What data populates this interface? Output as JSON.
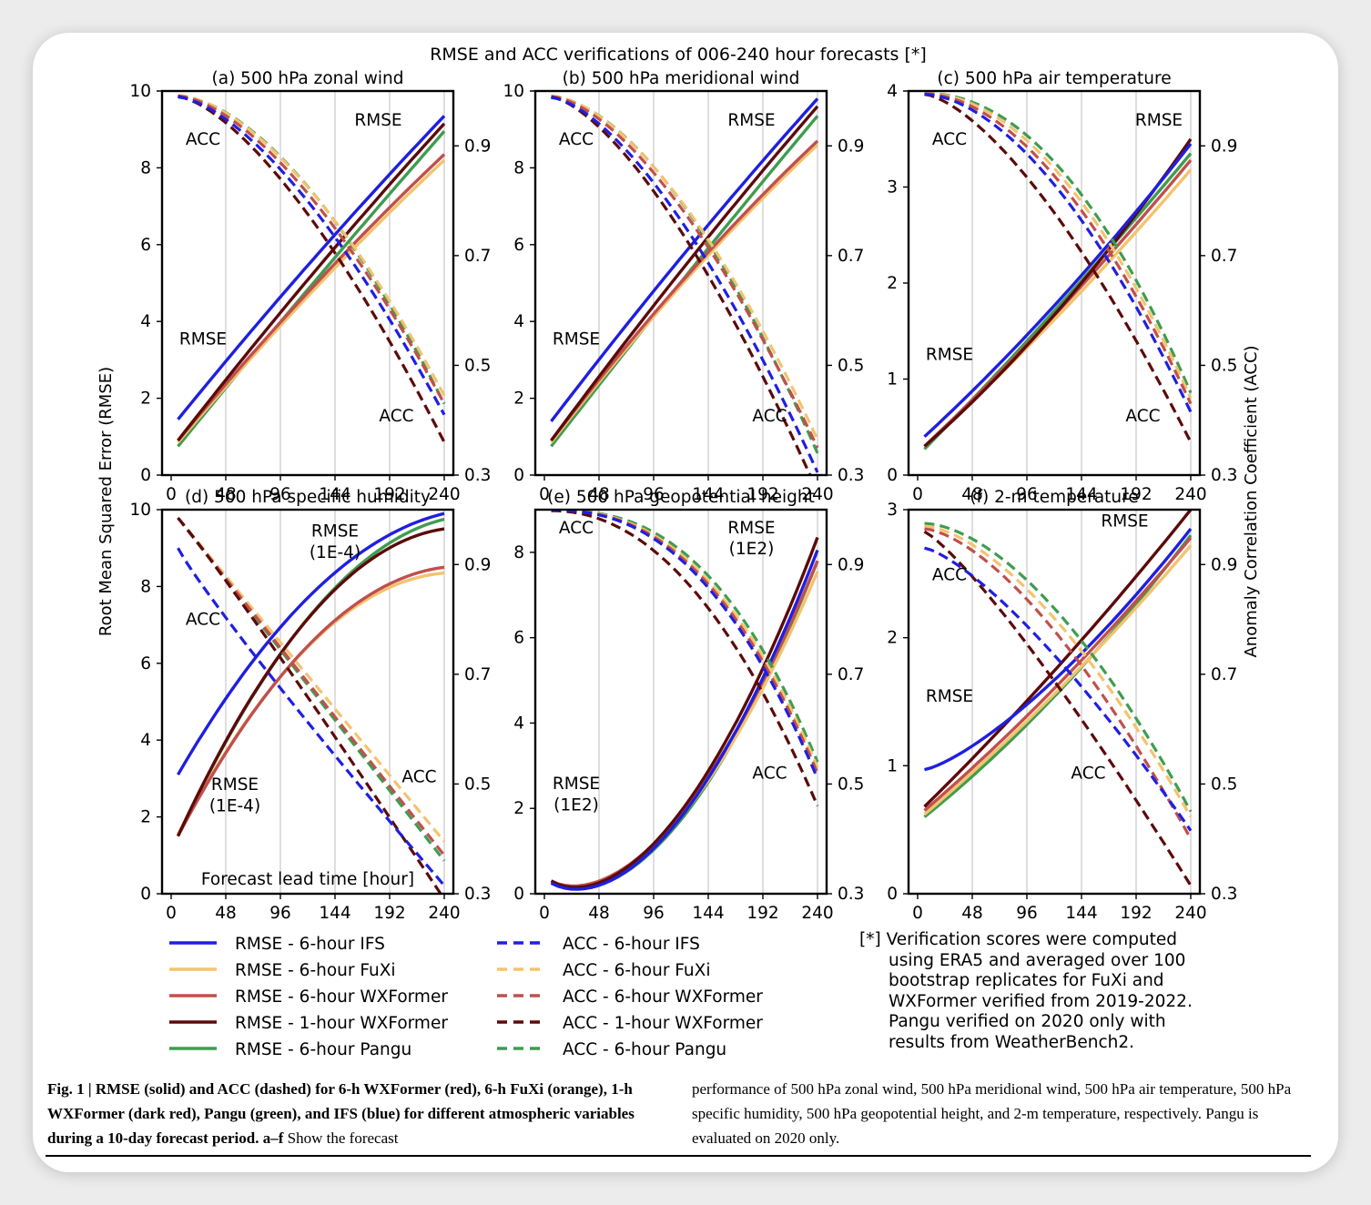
{
  "figure": {
    "suptitle": "RMSE and ACC verifications of 006-240 hour forecasts [*]",
    "left_axis_label": "Root Mean Squared Error (RMSE)",
    "right_axis_label": "Anomaly Correlation Coefficient (ACC)",
    "x_axis_label": "Forecast lead time [hour]"
  },
  "legend": [
    {
      "label": "RMSE - 6-hour IFS",
      "color": "#1f1fe0",
      "dash": "solid"
    },
    {
      "label": "RMSE - 6-hour FuXi",
      "color": "#f3c36f",
      "dash": "solid"
    },
    {
      "label": "RMSE - 6-hour WXFormer",
      "color": "#c0504d",
      "dash": "solid"
    },
    {
      "label": "RMSE - 1-hour WXFormer",
      "color": "#5c0a0a",
      "dash": "solid"
    },
    {
      "label": "RMSE - 6-hour Pangu",
      "color": "#3f9c50",
      "dash": "solid"
    },
    {
      "label": "ACC - 6-hour IFS",
      "color": "#1f1fe0",
      "dash": "dashed"
    },
    {
      "label": "ACC - 6-hour FuXi",
      "color": "#f3c36f",
      "dash": "dashed"
    },
    {
      "label": "ACC - 6-hour WXFormer",
      "color": "#c0504d",
      "dash": "dashed"
    },
    {
      "label": "ACC - 1-hour WXFormer",
      "color": "#5c0a0a",
      "dash": "dashed"
    },
    {
      "label": "ACC - 6-hour Pangu",
      "color": "#3f9c50",
      "dash": "dashed"
    }
  ],
  "note": [
    "[*] Verification scores were computed",
    "using ERA5 and averaged over 100",
    "bootstrap replicates for FuXi and",
    "WXFormer verified from 2019-2022.",
    "Pangu verified on 2020 only with",
    "results from WeatherBench2."
  ],
  "caption": {
    "bold": "Fig. 1 | RMSE (solid) and ACC (dashed) for 6-h WXFormer (red), 6-h FuXi (orange), 1-h WXFormer (dark red), Pangu (green), and IFS (blue) for different atmospheric variables during a 10-day forecast period. a–f",
    "normal_left": " Show the forecast",
    "right": "performance of 500 hPa zonal wind, 500 hPa meridional wind, 500 hPa air temperature, 500 hPa specific humidity, 500 hPa geopotential height, and 2-m temperature, respectively. Pangu is evaluated on 2020 only."
  },
  "chart_data": [
    {
      "type": "line",
      "title": "(a) 500 hPa zonal wind",
      "x": [
        6,
        240
      ],
      "xticks": [
        0,
        48,
        96,
        144,
        192,
        240
      ],
      "ylim": [
        0,
        10
      ],
      "yticks": [
        0,
        2,
        4,
        6,
        8,
        10
      ],
      "y2lim": [
        0.3,
        1.0
      ],
      "y2ticks": [
        0.3,
        0.5,
        0.7,
        0.9
      ],
      "annotations": [
        {
          "text": "ACC",
          "x": 28,
          "y": 8.6
        },
        {
          "text": "RMSE",
          "x": 182,
          "y": 9.1
        },
        {
          "text": "RMSE",
          "x": 28,
          "y": 3.4
        },
        {
          "text": "ACC",
          "x": 198,
          "y": 1.4
        }
      ],
      "rmse": [
        {
          "name": "6-hour IFS",
          "start": 1.45,
          "end": 9.35,
          "mid": 0.52,
          "p": 1.0
        },
        {
          "name": "6-hour FuXi",
          "start": 0.85,
          "end": 8.2,
          "mid": 0.53,
          "p": 1.0
        },
        {
          "name": "6-hour WXFormer",
          "start": 0.9,
          "end": 8.35,
          "mid": 0.53,
          "p": 1.0
        },
        {
          "name": "1-hour WXFormer",
          "start": 0.9,
          "end": 9.15,
          "mid": 0.52,
          "p": 1.0
        },
        {
          "name": "6-hour Pangu",
          "start": 0.75,
          "end": 8.95,
          "mid": 0.51,
          "p": 1.0
        }
      ],
      "acc": [
        {
          "name": "6-hour IFS",
          "start": 0.989,
          "end": 0.41,
          "p": 1.55
        },
        {
          "name": "6-hour FuXi",
          "start": 0.992,
          "end": 0.445,
          "p": 1.65
        },
        {
          "name": "6-hour WXFormer",
          "start": 0.991,
          "end": 0.43,
          "p": 1.6
        },
        {
          "name": "1-hour WXFormer",
          "start": 0.99,
          "end": 0.36,
          "p": 1.5
        },
        {
          "name": "6-hour Pangu",
          "start": 0.991,
          "end": 0.43,
          "p": 1.7
        }
      ]
    },
    {
      "type": "line",
      "title": "(b) 500 hPa meridional wind",
      "x": [
        6,
        240
      ],
      "xticks": [
        0,
        48,
        96,
        144,
        192,
        240
      ],
      "ylim": [
        0,
        10
      ],
      "yticks": [
        0,
        2,
        4,
        6,
        8,
        10
      ],
      "y2lim": [
        0.3,
        1.0
      ],
      "y2ticks": [
        0.3,
        0.5,
        0.7,
        0.9
      ],
      "annotations": [
        {
          "text": "ACC",
          "x": 28,
          "y": 8.6
        },
        {
          "text": "RMSE",
          "x": 182,
          "y": 9.1
        },
        {
          "text": "RMSE",
          "x": 28,
          "y": 3.4
        },
        {
          "text": "ACC",
          "x": 198,
          "y": 1.4
        }
      ],
      "rmse": [
        {
          "name": "6-hour IFS",
          "start": 1.4,
          "end": 9.8,
          "mid": 0.52,
          "p": 1.0
        },
        {
          "name": "6-hour FuXi",
          "start": 0.85,
          "end": 8.6,
          "mid": 0.54,
          "p": 1.0
        },
        {
          "name": "6-hour WXFormer",
          "start": 0.9,
          "end": 8.7,
          "mid": 0.54,
          "p": 1.0
        },
        {
          "name": "1-hour WXFormer",
          "start": 0.9,
          "end": 9.6,
          "mid": 0.52,
          "p": 1.0
        },
        {
          "name": "6-hour Pangu",
          "start": 0.75,
          "end": 9.35,
          "mid": 0.51,
          "p": 1.0
        }
      ],
      "acc": [
        {
          "name": "6-hour IFS",
          "start": 0.988,
          "end": 0.305,
          "p": 1.55
        },
        {
          "name": "6-hour FuXi",
          "start": 0.991,
          "end": 0.365,
          "p": 1.65
        },
        {
          "name": "6-hour WXFormer",
          "start": 0.99,
          "end": 0.35,
          "p": 1.6
        },
        {
          "name": "1-hour WXFormer",
          "start": 0.989,
          "end": 0.27,
          "p": 1.5
        },
        {
          "name": "6-hour Pangu",
          "start": 0.99,
          "end": 0.34,
          "p": 1.7
        }
      ]
    },
    {
      "type": "line",
      "title": "(c) 500 hPa air temperature",
      "x": [
        6,
        240
      ],
      "xticks": [
        0,
        48,
        96,
        144,
        192,
        240
      ],
      "ylim": [
        0,
        4
      ],
      "yticks": [
        0,
        1,
        2,
        3,
        4
      ],
      "y2lim": [
        0.3,
        1.0
      ],
      "y2ticks": [
        0.3,
        0.5,
        0.7,
        0.9
      ],
      "annotations": [
        {
          "text": "ACC",
          "x": 28,
          "y": 3.44
        },
        {
          "text": "RMSE",
          "x": 212,
          "y": 3.64
        },
        {
          "text": "RMSE",
          "x": 28,
          "y": 1.2
        },
        {
          "text": "ACC",
          "x": 198,
          "y": 0.56
        }
      ],
      "rmse": [
        {
          "name": "6-hour IFS",
          "start": 0.4,
          "end": 3.45,
          "mid": 0.46,
          "p": 1.0
        },
        {
          "name": "6-hour FuXi",
          "start": 0.3,
          "end": 3.18,
          "mid": 0.47,
          "p": 1.0
        },
        {
          "name": "6-hour WXFormer",
          "start": 0.3,
          "end": 3.28,
          "mid": 0.47,
          "p": 1.0
        },
        {
          "name": "1-hour WXFormer",
          "start": 0.3,
          "end": 3.5,
          "mid": 0.44,
          "p": 1.0
        },
        {
          "name": "6-hour Pangu",
          "start": 0.27,
          "end": 3.35,
          "mid": 0.48,
          "p": 1.0
        }
      ],
      "acc": [
        {
          "name": "6-hour IFS",
          "start": 0.994,
          "end": 0.415,
          "p": 1.75
        },
        {
          "name": "6-hour FuXi",
          "start": 0.996,
          "end": 0.44,
          "p": 1.95
        },
        {
          "name": "6-hour WXFormer",
          "start": 0.995,
          "end": 0.43,
          "p": 1.85
        },
        {
          "name": "1-hour WXFormer",
          "start": 0.994,
          "end": 0.36,
          "p": 1.5
        },
        {
          "name": "6-hour Pangu",
          "start": 0.996,
          "end": 0.45,
          "p": 2.05
        }
      ]
    },
    {
      "type": "line",
      "title": "(d) 500 hPa specific humidity",
      "x": [
        6,
        240
      ],
      "xticks": [
        0,
        48,
        96,
        144,
        192,
        240
      ],
      "ylim": [
        0,
        10
      ],
      "yticks": [
        0,
        2,
        4,
        6,
        8,
        10
      ],
      "y2lim": [
        0.3,
        1.0
      ],
      "y2ticks": [
        0.3,
        0.5,
        0.7,
        0.9
      ],
      "annotations": [
        {
          "text": "ACC",
          "x": 28,
          "y": 7.0
        },
        {
          "text": "RMSE",
          "x": 144,
          "y": 9.3
        },
        {
          "text": "(1E-4)",
          "x": 144,
          "y": 8.75
        },
        {
          "text": "RMSE",
          "x": 56,
          "y": 2.7
        },
        {
          "text": "(1E-4)",
          "x": 56,
          "y": 2.15
        },
        {
          "text": "ACC",
          "x": 218,
          "y": 2.9
        }
      ],
      "rmse": [
        {
          "name": "6-hour IFS",
          "start": 3.1,
          "end": 9.9,
          "mid": 0.69,
          "p": 1.0
        },
        {
          "name": "6-hour FuXi",
          "start": 1.55,
          "end": 8.35,
          "mid": 0.73,
          "p": 1.0
        },
        {
          "name": "6-hour WXFormer",
          "start": 1.5,
          "end": 8.5,
          "mid": 0.72,
          "p": 1.0
        },
        {
          "name": "1-hour WXFormer",
          "start": 1.5,
          "end": 9.5,
          "mid": 0.72,
          "p": 1.0
        },
        {
          "name": "6-hour Pangu",
          "start": 1.5,
          "end": 9.75,
          "mid": 0.7,
          "p": 1.0
        }
      ],
      "acc": [
        {
          "name": "6-hour IFS",
          "start": 0.93,
          "end": 0.315,
          "p": 0.92
        },
        {
          "name": "6-hour FuXi",
          "start": 0.985,
          "end": 0.395,
          "p": 1.0
        },
        {
          "name": "6-hour WXFormer",
          "start": 0.985,
          "end": 0.37,
          "p": 1.0
        },
        {
          "name": "1-hour WXFormer",
          "start": 0.985,
          "end": 0.29,
          "p": 1.05
        },
        {
          "name": "6-hour Pangu",
          "start": 0.985,
          "end": 0.36,
          "p": 1.0
        }
      ]
    },
    {
      "type": "line",
      "title": "(e) 500 hPa geopotential height",
      "x": [
        6,
        240
      ],
      "xticks": [
        0,
        48,
        96,
        144,
        192,
        240
      ],
      "ylim": [
        0,
        9
      ],
      "yticks": [
        0,
        2,
        4,
        6,
        8
      ],
      "y2lim": [
        0.3,
        1.0
      ],
      "y2ticks": [
        0.3,
        0.5,
        0.7,
        0.9
      ],
      "annotations": [
        {
          "text": "ACC",
          "x": 28,
          "y": 8.45
        },
        {
          "text": "RMSE",
          "x": 182,
          "y": 8.45
        },
        {
          "text": "(1E2)",
          "x": 182,
          "y": 7.95
        },
        {
          "text": "RMSE",
          "x": 28,
          "y": 2.45
        },
        {
          "text": "(1E2)",
          "x": 28,
          "y": 1.95
        },
        {
          "text": "ACC",
          "x": 198,
          "y": 2.7
        }
      ],
      "rmse": [
        {
          "name": "6-hour IFS",
          "start": 0.25,
          "end": 8.05,
          "mid": 0.37,
          "p": 1.55
        },
        {
          "name": "6-hour FuXi",
          "start": 0.28,
          "end": 7.55,
          "mid": 0.37,
          "p": 1.5
        },
        {
          "name": "6-hour WXFormer",
          "start": 0.3,
          "end": 7.8,
          "mid": 0.37,
          "p": 1.5
        },
        {
          "name": "1-hour WXFormer",
          "start": 0.3,
          "end": 8.35,
          "mid": 0.35,
          "p": 1.45
        },
        {
          "name": "6-hour Pangu",
          "start": 0.25,
          "end": 7.8,
          "mid": 0.38,
          "p": 1.6
        }
      ],
      "acc": [
        {
          "name": "6-hour IFS",
          "start": 0.999,
          "end": 0.51,
          "p": 2.35
        },
        {
          "name": "6-hour FuXi",
          "start": 0.999,
          "end": 0.53,
          "p": 2.45
        },
        {
          "name": "6-hour WXFormer",
          "start": 0.999,
          "end": 0.52,
          "p": 2.4
        },
        {
          "name": "1-hour WXFormer",
          "start": 0.998,
          "end": 0.46,
          "p": 2.1
        },
        {
          "name": "6-hour Pangu",
          "start": 0.999,
          "end": 0.54,
          "p": 2.55
        }
      ]
    },
    {
      "type": "line",
      "title": "(f) 2-m temperature",
      "x": [
        6,
        240
      ],
      "xticks": [
        0,
        48,
        96,
        144,
        192,
        240
      ],
      "ylim": [
        0,
        3
      ],
      "yticks": [
        0,
        1,
        2,
        3
      ],
      "y2lim": [
        0.3,
        1.0
      ],
      "y2ticks": [
        0.3,
        0.5,
        0.7,
        0.9
      ],
      "annotations": [
        {
          "text": "ACC",
          "x": 28,
          "y": 2.45
        },
        {
          "text": "RMSE",
          "x": 182,
          "y": 2.87
        },
        {
          "text": "RMSE",
          "x": 28,
          "y": 1.5
        },
        {
          "text": "ACC",
          "x": 150,
          "y": 0.9
        }
      ],
      "rmse": [
        {
          "name": "6-hour IFS",
          "start": 0.97,
          "end": 2.85,
          "mid": 0.45,
          "p": 1.2
        },
        {
          "name": "6-hour FuXi",
          "start": 0.62,
          "end": 2.72,
          "mid": 0.46,
          "p": 1.0
        },
        {
          "name": "6-hour WXFormer",
          "start": 0.65,
          "end": 2.78,
          "mid": 0.46,
          "p": 1.0
        },
        {
          "name": "1-hour WXFormer",
          "start": 0.68,
          "end": 3.0,
          "mid": 0.47,
          "p": 1.0
        },
        {
          "name": "6-hour Pangu",
          "start": 0.6,
          "end": 2.8,
          "mid": 0.44,
          "p": 1.0
        }
      ],
      "acc": [
        {
          "name": "6-hour IFS",
          "start": 0.93,
          "end": 0.415,
          "p": 1.35
        },
        {
          "name": "6-hour FuXi",
          "start": 0.97,
          "end": 0.44,
          "p": 1.6
        },
        {
          "name": "6-hour WXFormer",
          "start": 0.965,
          "end": 0.4,
          "p": 1.55
        },
        {
          "name": "1-hour WXFormer",
          "start": 0.96,
          "end": 0.315,
          "p": 1.2
        },
        {
          "name": "6-hour Pangu",
          "start": 0.975,
          "end": 0.45,
          "p": 1.7
        }
      ]
    }
  ]
}
